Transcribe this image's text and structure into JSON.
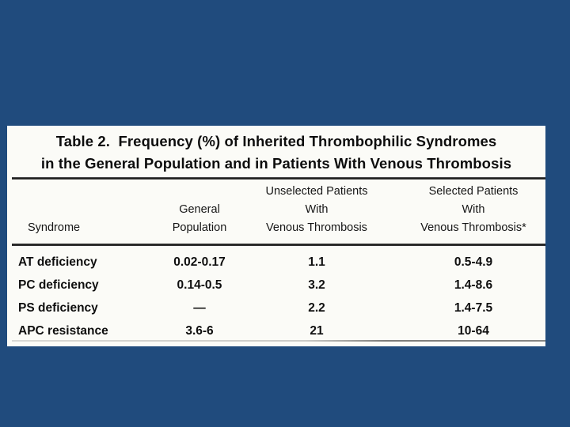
{
  "slide": {
    "background_color": "#204b7d",
    "panel_color": "#fbfbf7",
    "text_color": "#111111"
  },
  "table": {
    "title_line1": "Table 2.  Frequency (%) of Inherited Thrombophilic Syndromes",
    "title_line2": "in the General Population and in Patients With Venous Thrombosis",
    "columns": [
      {
        "id": "syndrome",
        "header_lines": [
          "Syndrome"
        ]
      },
      {
        "id": "general",
        "header_lines": [
          "General",
          "Population"
        ]
      },
      {
        "id": "unselected",
        "header_lines": [
          "Unselected Patients",
          "With",
          "Venous Thrombosis"
        ]
      },
      {
        "id": "selected",
        "header_lines": [
          "Selected Patients",
          "With",
          "Venous Thrombosis*"
        ]
      }
    ],
    "rows": [
      {
        "syndrome": "AT deficiency",
        "general": "0.02-0.17",
        "unselected": "1.1",
        "selected": "0.5-4.9"
      },
      {
        "syndrome": "PC deficiency",
        "general": "0.14-0.5",
        "unselected": "3.2",
        "selected": "1.4-8.6"
      },
      {
        "syndrome": "PS deficiency",
        "general": "—",
        "unselected": "2.2",
        "selected": "1.4-7.5"
      },
      {
        "syndrome": "APC resistance",
        "general": "3.6-6",
        "unselected": "21",
        "selected": "10-64"
      }
    ]
  }
}
